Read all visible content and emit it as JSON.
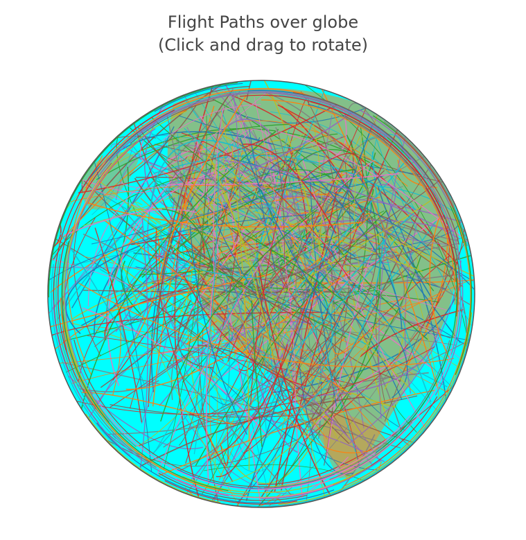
{
  "title": {
    "line1": "Flight Paths over globe",
    "line2": "(Click and drag to rotate)"
  },
  "colors": {
    "ocean": "#00ffff",
    "land": "#ef8c28",
    "title": "#444444",
    "rim": "#555555",
    "routes": [
      "#1f77b4",
      "#ff7f0e",
      "#2ca02c",
      "#d62728",
      "#9467bd",
      "#8c564b",
      "#e377c2",
      "#7f7f7f",
      "#bcbd22",
      "#17becf"
    ]
  },
  "map": {
    "projection": "orthographic",
    "layer": "flight routes",
    "interaction": "drag-to-rotate"
  }
}
